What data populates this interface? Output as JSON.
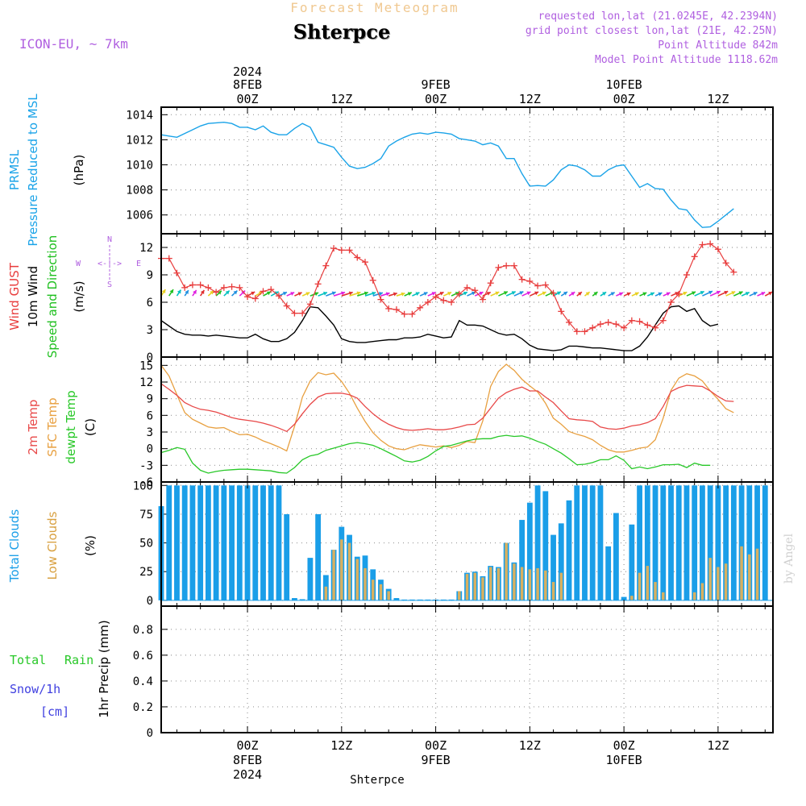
{
  "header": {
    "subtitle": "Forecast Meteogram",
    "location": "Shterpce",
    "model": "ICON-EU, ~ 7km",
    "requested": "requested lon,lat (21.0245E, 42.2394N)",
    "gridpoint": "grid point closest lon,lat (21E, 42.25N)",
    "point_alt": "Point Altitude 842m",
    "model_alt": "Model Point Altitude 1118.62m"
  },
  "footer": {
    "location": "Shterpce",
    "credit": "by Angel"
  },
  "colors": {
    "pressure": "#1aa3e8",
    "gust": "#e83c3c",
    "wind": "#000000",
    "dir": "#20c020",
    "temp2m": "#e84848",
    "sfc": "#e8a040",
    "dewpt": "#28c828",
    "total_cloud": "#1a9ee8",
    "low_cloud": "#d8b060",
    "snow": "#4040e0",
    "meta": "#b060e0"
  },
  "time_axis": {
    "top_ticks": [
      {
        "i": 0,
        "label": "00Z",
        "date": "8FEB",
        "year": "2024"
      },
      {
        "i": 12,
        "label": "12Z",
        "date": "",
        "year": ""
      },
      {
        "i": 24,
        "label": "00Z",
        "date": "9FEB",
        "year": ""
      },
      {
        "i": 36,
        "label": "12Z",
        "date": "",
        "year": ""
      },
      {
        "i": 48,
        "label": "00Z",
        "date": "10FEB",
        "year": ""
      },
      {
        "i": 60,
        "label": "12Z",
        "date": "",
        "year": ""
      }
    ],
    "bottom_ticks": [
      {
        "i": 0,
        "label": "00Z",
        "date": "8FEB",
        "year": "2024"
      },
      {
        "i": 12,
        "label": "12Z",
        "date": "",
        "year": ""
      },
      {
        "i": 24,
        "label": "00Z",
        "date": "9FEB",
        "year": ""
      },
      {
        "i": 36,
        "label": "12Z",
        "date": "",
        "year": ""
      },
      {
        "i": 48,
        "label": "00Z",
        "date": "10FEB",
        "year": ""
      },
      {
        "i": 60,
        "label": "12Z",
        "date": "",
        "year": ""
      }
    ]
  },
  "chart_data": [
    {
      "type": "line",
      "id": "pressure",
      "title": "PRMSL Pressure Reduced to MSL",
      "label_a": "PRMSL",
      "label_b": "Pressure Reduced to MSL",
      "ylabel": "(hPa)",
      "ylim": [
        1004.5,
        1014.6
      ],
      "yticks": [
        1006,
        1008,
        1010,
        1012,
        1014
      ],
      "x_hours": [
        -11,
        67
      ],
      "series": [
        {
          "name": "PRMSL",
          "start": -11,
          "values": [
            1012.4,
            1012.3,
            1012.2,
            1012.5,
            1012.8,
            1013.1,
            1013.3,
            1013.35,
            1013.4,
            1013.3,
            1013.0,
            1013.0,
            1012.8,
            1013.1,
            1012.6,
            1012.4,
            1012.4,
            1012.9,
            1013.3,
            1013.0,
            1011.8,
            1011.6,
            1011.4,
            1010.6,
            1009.9,
            1009.7,
            1009.8,
            1010.1,
            1010.5,
            1011.5,
            1011.9,
            1012.2,
            1012.45,
            1012.55,
            1012.45,
            1012.6,
            1012.55,
            1012.45,
            1012.1,
            1012.0,
            1011.9,
            1011.6,
            1011.75,
            1011.5,
            1010.5,
            1010.5,
            1009.3,
            1008.3,
            1008.35,
            1008.3,
            1008.8,
            1009.6,
            1010.0,
            1009.9,
            1009.6,
            1009.1,
            1009.1,
            1009.6,
            1009.9,
            1010.0,
            1009.1,
            1008.2,
            1008.5,
            1008.1,
            1008.05,
            1007.2,
            1006.5,
            1006.4,
            1005.6,
            1005.0,
            1005.05,
            1005.5,
            1006.0,
            1006.5
          ]
        }
      ]
    },
    {
      "type": "line",
      "id": "wind",
      "title": "Wind GUST, 10m Wind Speed and Direction",
      "label_gust": "Wind GUST",
      "label_wind_a": "10m Wind",
      "label_wind_b": "Speed and Direction",
      "ylabel": "(m/s)",
      "compass": {
        "n": "N",
        "s": "S",
        "w": "W",
        "e": "E",
        "mid": "<-|->"
      },
      "ylim": [
        0,
        13.5
      ],
      "yticks": [
        0,
        3,
        6,
        9,
        12
      ],
      "x_hours": [
        -11,
        67
      ],
      "series": [
        {
          "name": "Gust",
          "start": -11,
          "values": [
            10.8,
            10.8,
            9.2,
            7.6,
            7.9,
            7.9,
            7.6,
            7.1,
            7.6,
            7.7,
            7.6,
            6.6,
            6.4,
            7.2,
            7.4,
            6.7,
            5.6,
            4.8,
            4.8,
            5.8,
            8.0,
            10.0,
            11.9,
            11.7,
            11.7,
            10.9,
            10.4,
            8.4,
            6.3,
            5.3,
            5.2,
            4.7,
            4.7,
            5.4,
            6.0,
            6.6,
            6.2,
            6.0,
            6.9,
            7.6,
            7.3,
            6.3,
            8.1,
            9.8,
            10.0,
            10.0,
            8.5,
            8.3,
            7.8,
            7.9,
            7.0,
            5.0,
            3.8,
            2.8,
            2.8,
            3.2,
            3.6,
            3.8,
            3.6,
            3.2,
            4.0,
            3.9,
            3.5,
            3.2,
            4.0,
            6.0,
            6.9,
            9.0,
            11.0,
            12.3,
            12.4,
            11.8,
            10.3,
            9.3
          ]
        },
        {
          "name": "10m Wind",
          "start": -11,
          "values": [
            4.0,
            3.4,
            2.8,
            2.5,
            2.4,
            2.4,
            2.3,
            2.4,
            2.3,
            2.2,
            2.1,
            2.1,
            2.5,
            2.0,
            1.7,
            1.7,
            2.0,
            2.7,
            4.0,
            5.5,
            5.4,
            4.5,
            3.5,
            2.0,
            1.7,
            1.6,
            1.6,
            1.7,
            1.8,
            1.9,
            1.9,
            2.1,
            2.1,
            2.2,
            2.5,
            2.3,
            2.1,
            2.2,
            4.0,
            3.5,
            3.5,
            3.4,
            3.0,
            2.6,
            2.4,
            2.5,
            2.0,
            1.3,
            0.9,
            0.8,
            0.7,
            0.8,
            1.2,
            1.2,
            1.1,
            1.0,
            1.0,
            0.9,
            0.8,
            0.7,
            0.7,
            1.2,
            2.2,
            3.5,
            4.8,
            5.5,
            5.6,
            5.0,
            5.3,
            4.0,
            3.4,
            3.6
          ]
        }
      ],
      "arrow_directions_deg": [
        70,
        70,
        70,
        70,
        70,
        70,
        60,
        60,
        60,
        60,
        60,
        45,
        45,
        45,
        45,
        40,
        40,
        40,
        40,
        35,
        35,
        35,
        30,
        30,
        30,
        30,
        30,
        30,
        30,
        30,
        30,
        40,
        40,
        40,
        40,
        40,
        40,
        40,
        40,
        40,
        40,
        40,
        40,
        40,
        40,
        40,
        40,
        40,
        40,
        40,
        45,
        50,
        50,
        55,
        55,
        55,
        50,
        45,
        40,
        40,
        40,
        40,
        40,
        40,
        40,
        40,
        40,
        40,
        40,
        40,
        40,
        40,
        40,
        40,
        40,
        40,
        40,
        45
      ],
      "arrow_colors": [
        "#e8d020",
        "#20c020",
        "#00c0c0",
        "#2090e0",
        "#e020e0",
        "#e03030"
      ]
    },
    {
      "type": "line",
      "id": "temperature",
      "title": "2m Temp, SFC Temp, dewpt Temp",
      "label_2m": "2m Temp",
      "label_sfc": "SFC Temp",
      "label_dewpt": "dewpt Temp",
      "ylabel": "(C)",
      "ylim": [
        -6,
        16.5
      ],
      "yticks": [
        -6,
        -3,
        0,
        3,
        6,
        9,
        12,
        15
      ],
      "x_hours": [
        -11,
        67
      ],
      "series": [
        {
          "name": "2m Temp",
          "start": -11,
          "values": [
            11.7,
            10.7,
            9.6,
            8.3,
            7.6,
            7.1,
            6.9,
            6.6,
            6.1,
            5.6,
            5.3,
            5.1,
            4.9,
            4.6,
            4.2,
            3.7,
            3.1,
            4.4,
            6.3,
            8.0,
            9.3,
            9.9,
            10.0,
            10.0,
            9.7,
            9.1,
            7.6,
            6.3,
            5.2,
            4.4,
            3.8,
            3.4,
            3.3,
            3.4,
            3.6,
            3.4,
            3.4,
            3.6,
            3.9,
            4.3,
            4.4,
            5.5,
            7.3,
            9.1,
            10.1,
            10.7,
            11.1,
            10.4,
            10.4,
            9.3,
            8.3,
            6.8,
            5.4,
            5.2,
            5.1,
            4.9,
            3.9,
            3.6,
            3.5,
            3.7,
            4.1,
            4.3,
            4.7,
            5.4,
            7.6,
            10.3,
            11.0,
            11.4,
            11.3,
            11.2,
            10.4,
            9.4,
            8.6,
            8.5
          ]
        },
        {
          "name": "SFC Temp",
          "start": -11,
          "values": [
            15.0,
            13.1,
            9.7,
            6.5,
            5.3,
            4.6,
            3.9,
            3.7,
            3.8,
            3.1,
            2.5,
            2.6,
            2.1,
            1.4,
            0.9,
            0.3,
            -0.4,
            4.0,
            9.3,
            12.2,
            13.7,
            13.3,
            13.6,
            12.1,
            10.0,
            7.3,
            4.9,
            2.9,
            1.5,
            0.5,
            0.0,
            -0.2,
            0.3,
            0.7,
            0.5,
            0.3,
            0.5,
            0.2,
            0.6,
            1.3,
            1.1,
            5.0,
            11.2,
            13.9,
            15.2,
            14.1,
            12.5,
            11.3,
            10.2,
            8.2,
            5.5,
            4.4,
            3.1,
            2.6,
            2.2,
            1.6,
            0.6,
            -0.2,
            -0.6,
            -0.6,
            -0.3,
            0.1,
            0.3,
            1.6,
            5.5,
            10.5,
            12.7,
            13.5,
            13.1,
            12.2,
            10.4,
            8.9,
            7.2,
            6.5
          ]
        },
        {
          "name": "dewpt Temp",
          "start": -11,
          "values": [
            -0.7,
            -0.3,
            0.2,
            -0.1,
            -2.6,
            -3.9,
            -4.4,
            -4.1,
            -3.9,
            -3.8,
            -3.7,
            -3.7,
            -3.8,
            -3.9,
            -4.0,
            -4.3,
            -4.4,
            -3.4,
            -2.0,
            -1.3,
            -1.0,
            -0.3,
            0.1,
            0.5,
            0.9,
            1.1,
            0.9,
            0.6,
            0.0,
            -0.7,
            -1.4,
            -2.2,
            -2.4,
            -2.1,
            -1.4,
            -0.4,
            0.4,
            0.6,
            1.0,
            1.4,
            1.7,
            1.8,
            1.8,
            2.2,
            2.4,
            2.2,
            2.3,
            1.9,
            1.3,
            0.8,
            0.0,
            -0.8,
            -1.8,
            -2.9,
            -2.8,
            -2.5,
            -2.0,
            -2.0,
            -1.3,
            -2.1,
            -3.6,
            -3.3,
            -3.6,
            -3.3,
            -2.9,
            -2.9,
            -2.8,
            -3.4,
            -2.6,
            -3.0,
            -3.0
          ]
        }
      ]
    },
    {
      "type": "bar",
      "id": "clouds",
      "title": "Total Clouds, Low Clouds",
      "label_total": "Total Clouds",
      "label_low": "Low Clouds",
      "ylabel": "(%)",
      "ylim": [
        -5,
        103
      ],
      "yticks": [
        0,
        25,
        50,
        75,
        100
      ],
      "x_hours": [
        -11,
        67
      ],
      "series": [
        {
          "name": "Total Clouds",
          "start": -11,
          "values": [
            82,
            100,
            100,
            100,
            100,
            100,
            100,
            100,
            100,
            100,
            100,
            100,
            100,
            100,
            100,
            100,
            75,
            2,
            1,
            37,
            75,
            22,
            44,
            64,
            57,
            38,
            39,
            27,
            18,
            10,
            2,
            0,
            0,
            0,
            0,
            0,
            0,
            0,
            8,
            24,
            25,
            21,
            30,
            29,
            50,
            33,
            70,
            85,
            100,
            95,
            57,
            67,
            87,
            100,
            100,
            100,
            100,
            47,
            76,
            3,
            66,
            100,
            100,
            100,
            100,
            100,
            100,
            100,
            100,
            100,
            100,
            100,
            100,
            100,
            100,
            100,
            100,
            100
          ]
        },
        {
          "name": "Low Clouds",
          "start": -11,
          "values": [
            0,
            0,
            0,
            0,
            0,
            0,
            0,
            0,
            0,
            0,
            0,
            0,
            0,
            0,
            0,
            0,
            0,
            0,
            0,
            0,
            0,
            12,
            44,
            53,
            50,
            36,
            28,
            18,
            14,
            8,
            0,
            0,
            0,
            0,
            0,
            0,
            0,
            0,
            8,
            23,
            24,
            20,
            29,
            28,
            50,
            32,
            29,
            27,
            28,
            26,
            16,
            24,
            0,
            0,
            0,
            0,
            0,
            0,
            0,
            0,
            4,
            24,
            30,
            16,
            7,
            0,
            0,
            0,
            7,
            15,
            37,
            29,
            32,
            0,
            47,
            40,
            45
          ]
        }
      ]
    },
    {
      "type": "line",
      "id": "precip",
      "title": "1hr Precip",
      "label_total": "Total",
      "label_rain": "Rain",
      "label_snow": "Snow/1h",
      "label_snow_unit": "[cm]",
      "ylabel": "1hr Precip (mm)",
      "ylim": [
        0,
        0.98
      ],
      "yticks": [
        0,
        0.2,
        0.4,
        0.6,
        0.8
      ],
      "x_hours": [
        -11,
        67
      ],
      "series": [
        {
          "name": "Total",
          "start": -11,
          "values": [
            0
          ]
        }
      ]
    }
  ]
}
